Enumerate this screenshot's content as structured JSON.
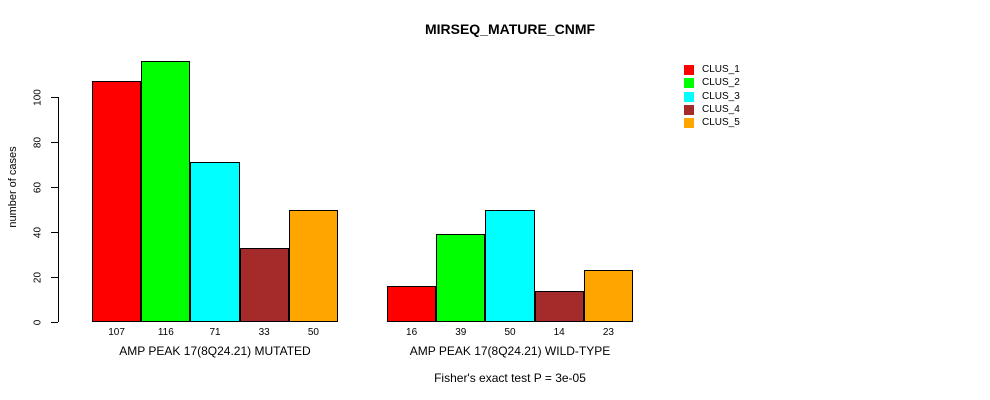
{
  "chart_data": {
    "type": "bar",
    "title": "MIRSEQ_MATURE_CNMF",
    "ylabel": "number of cases",
    "xlabel": "",
    "ylim": [
      0,
      116
    ],
    "yticks": [
      0,
      20,
      40,
      60,
      80,
      100
    ],
    "grid": false,
    "legend_position": "top-right",
    "bar_value_labels": true,
    "categories": [
      "AMP PEAK 17(8Q24.21) MUTATED",
      "AMP PEAK 17(8Q24.21) WILD-TYPE"
    ],
    "series": [
      {
        "name": "CLUS_1",
        "color": "#FF0000",
        "values": [
          107,
          16
        ]
      },
      {
        "name": "CLUS_2",
        "color": "#00FF00",
        "values": [
          116,
          39
        ]
      },
      {
        "name": "CLUS_3",
        "color": "#00FFFF",
        "values": [
          71,
          50
        ]
      },
      {
        "name": "CLUS_4",
        "color": "#A52A2A",
        "values": [
          33,
          14
        ]
      },
      {
        "name": "CLUS_5",
        "color": "#FFA500",
        "values": [
          50,
          23
        ]
      }
    ],
    "annotation": "Fisher's exact test P = 3e-05",
    "axis_color": "#000000",
    "background_color": "#FFFFFF"
  }
}
